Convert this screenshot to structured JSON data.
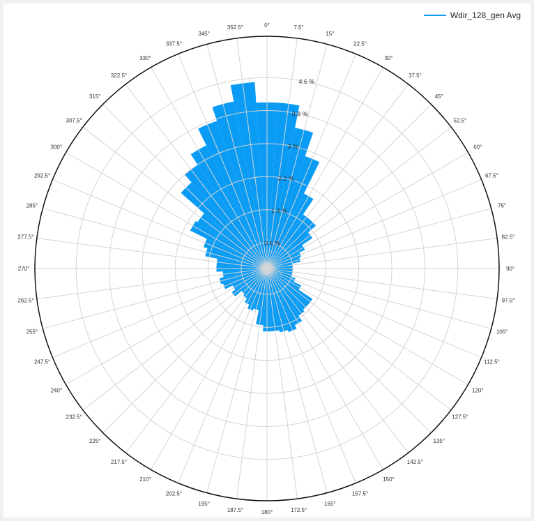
{
  "legend": {
    "series_name": "Wdir_128_gen Avg",
    "color": "#0a9cf5"
  },
  "chart_data": {
    "type": "polar-bar",
    "series": [
      {
        "name": "Wdir_128_gen Avg",
        "color": "#0a9cf5",
        "sector_width_deg": 7.5,
        "directions": [
          0,
          7.5,
          15,
          22.5,
          30,
          37.5,
          45,
          52.5,
          60,
          67.5,
          75,
          82.5,
          90,
          97.5,
          105,
          112.5,
          120,
          127.5,
          135,
          142.5,
          150,
          157.5,
          165,
          172.5,
          180,
          187.5,
          195,
          202.5,
          210,
          217.5,
          225,
          232.5,
          240,
          247.5,
          255,
          262.5,
          270,
          277.5,
          285,
          292.5,
          300,
          307.5,
          315,
          322.5,
          330,
          337.5,
          345,
          352.5
        ],
        "values": [
          4.0,
          4.0,
          3.45,
          2.85,
          2.0,
          1.55,
          1.55,
          1.3,
          1.0,
          0.85,
          0.8,
          0.45,
          0.45,
          0.45,
          0.6,
          0.7,
          0.9,
          1.3,
          1.3,
          1.35,
          1.5,
          1.6,
          1.55,
          1.5,
          1.5,
          1.35,
          1.0,
          1.05,
          0.95,
          0.85,
          0.8,
          1.0,
          0.9,
          1.1,
          1.15,
          1.05,
          1.2,
          1.2,
          1.5,
          1.6,
          2.05,
          2.0,
          2.75,
          3.0,
          3.3,
          3.75,
          4.1,
          4.5
        ]
      }
    ],
    "radial_ticks": [
      "0.6 %",
      "1.4 %",
      "2.2 %",
      "3 %",
      "3.8 %",
      "4.6 %"
    ],
    "radial_values": [
      0.6,
      1.4,
      2.2,
      3.0,
      3.8,
      4.6
    ],
    "rmin": 0.6,
    "rmax": 5.6,
    "angle_labels": [
      "0°",
      "7.5°",
      "15°",
      "22.5°",
      "30°",
      "37.5°",
      "45°",
      "52.5°",
      "60°",
      "67.5°",
      "75°",
      "82.5°",
      "90°",
      "97.5°",
      "105°",
      "112.5°",
      "120°",
      "127.5°",
      "135°",
      "142.5°",
      "150°",
      "157.5°",
      "165°",
      "172.5°",
      "180°",
      "187.5°",
      "195°",
      "202.5°",
      "210°",
      "217.5°",
      "225°",
      "232.5°",
      "240°",
      "247.5°",
      "255°",
      "262.5°",
      "270°",
      "277.5°",
      "285°",
      "292.5°",
      "300°",
      "307.5°",
      "315°",
      "322.5°",
      "330°",
      "337.5°",
      "345°",
      "352.5°"
    ],
    "direction": "clockwise",
    "zero_at": "top",
    "grid": true,
    "legend_position": "top-right"
  }
}
